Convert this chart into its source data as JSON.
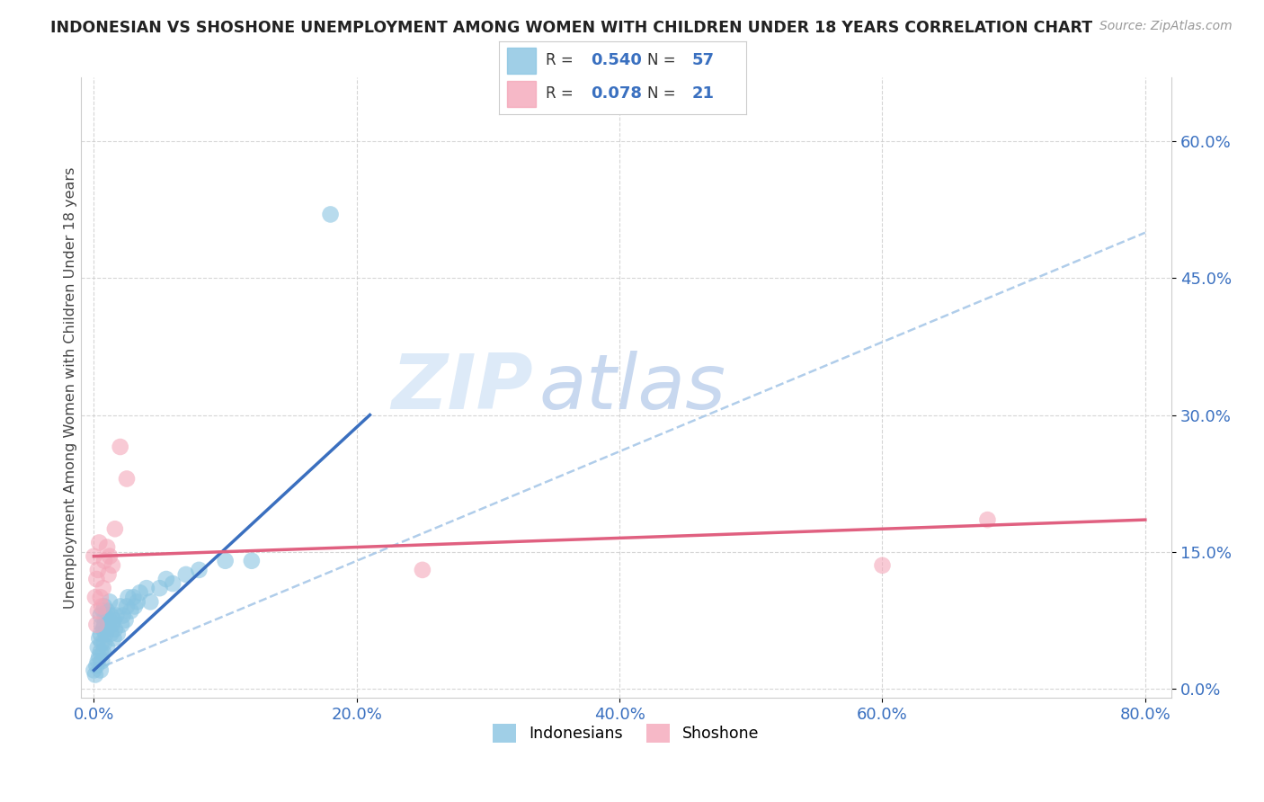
{
  "title": "INDONESIAN VS SHOSHONE UNEMPLOYMENT AMONG WOMEN WITH CHILDREN UNDER 18 YEARS CORRELATION CHART",
  "source": "Source: ZipAtlas.com",
  "xlabel_tick_vals": [
    0.0,
    0.2,
    0.4,
    0.6,
    0.8
  ],
  "ylabel_tick_vals": [
    0.0,
    0.15,
    0.3,
    0.45,
    0.6
  ],
  "ylabel": "Unemployment Among Women with Children Under 18 years",
  "indonesian_R": "0.540",
  "indonesian_N": "57",
  "shoshone_R": "0.078",
  "shoshone_N": "21",
  "watermark_zip": "ZIP",
  "watermark_atlas": "atlas",
  "indonesian_color": "#89c4e1",
  "shoshone_color": "#f4a7b9",
  "indonesian_line_color": "#3a6fbf",
  "shoshone_line_color": "#e06080",
  "dashed_line_color": "#a8c8e8",
  "background_color": "#ffffff",
  "indonesian_x": [
    0.0,
    0.001,
    0.002,
    0.003,
    0.003,
    0.004,
    0.004,
    0.005,
    0.005,
    0.005,
    0.005,
    0.006,
    0.006,
    0.006,
    0.007,
    0.007,
    0.007,
    0.008,
    0.008,
    0.008,
    0.009,
    0.009,
    0.01,
    0.01,
    0.01,
    0.011,
    0.012,
    0.012,
    0.013,
    0.013,
    0.014,
    0.015,
    0.015,
    0.016,
    0.017,
    0.018,
    0.02,
    0.021,
    0.022,
    0.024,
    0.025,
    0.026,
    0.028,
    0.03,
    0.031,
    0.033,
    0.035,
    0.04,
    0.043,
    0.05,
    0.055,
    0.06,
    0.07,
    0.08,
    0.1,
    0.12,
    0.18
  ],
  "indonesian_y": [
    0.02,
    0.015,
    0.025,
    0.03,
    0.045,
    0.035,
    0.055,
    0.02,
    0.04,
    0.06,
    0.08,
    0.03,
    0.05,
    0.07,
    0.04,
    0.065,
    0.085,
    0.05,
    0.07,
    0.09,
    0.06,
    0.08,
    0.045,
    0.065,
    0.085,
    0.07,
    0.075,
    0.095,
    0.06,
    0.08,
    0.07,
    0.055,
    0.075,
    0.065,
    0.08,
    0.06,
    0.09,
    0.07,
    0.08,
    0.075,
    0.09,
    0.1,
    0.085,
    0.1,
    0.09,
    0.095,
    0.105,
    0.11,
    0.095,
    0.11,
    0.12,
    0.115,
    0.125,
    0.13,
    0.14,
    0.14,
    0.52
  ],
  "shoshone_x": [
    0.0,
    0.001,
    0.002,
    0.002,
    0.003,
    0.003,
    0.004,
    0.005,
    0.006,
    0.007,
    0.008,
    0.01,
    0.011,
    0.012,
    0.014,
    0.016,
    0.02,
    0.025,
    0.25,
    0.6,
    0.68
  ],
  "shoshone_y": [
    0.145,
    0.1,
    0.07,
    0.12,
    0.085,
    0.13,
    0.16,
    0.1,
    0.09,
    0.11,
    0.14,
    0.155,
    0.125,
    0.145,
    0.135,
    0.175,
    0.265,
    0.23,
    0.13,
    0.135,
    0.185
  ],
  "indo_line_x0": 0.0,
  "indo_line_y0": 0.02,
  "indo_line_x1": 0.21,
  "indo_line_y1": 0.3,
  "sho_line_x0": 0.0,
  "sho_line_y0": 0.145,
  "sho_line_x1": 0.8,
  "sho_line_y1": 0.185,
  "dash_line_x0": 0.0,
  "dash_line_y0": 0.02,
  "dash_line_x1": 0.8,
  "dash_line_y1": 0.5
}
